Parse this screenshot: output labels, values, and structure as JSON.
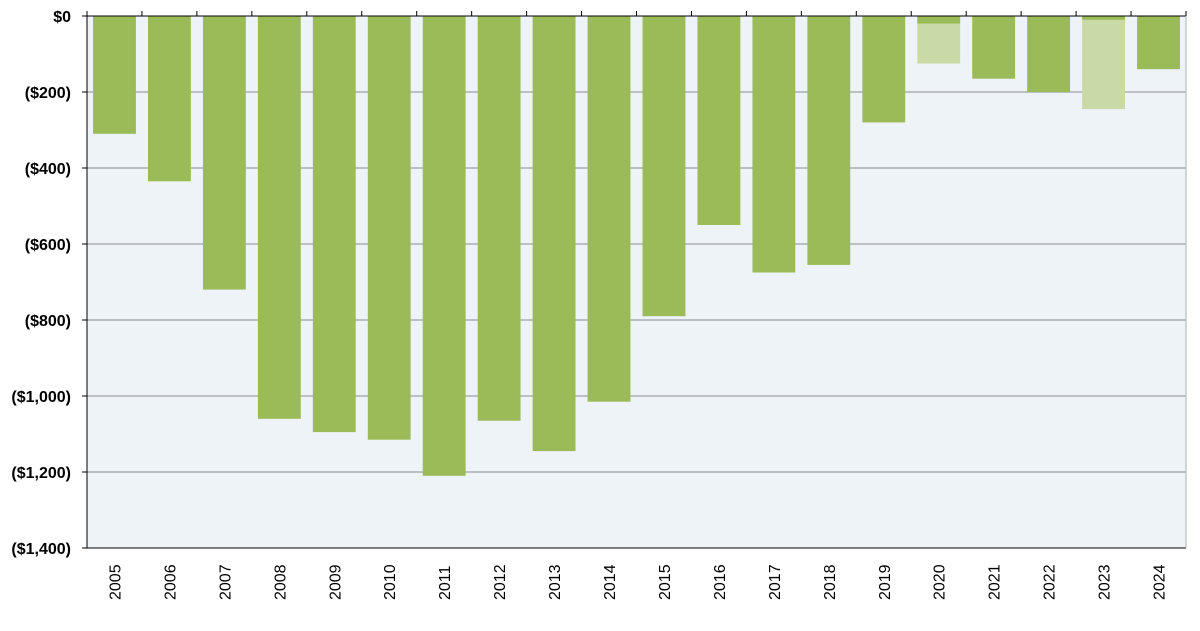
{
  "chart_data": {
    "type": "bar",
    "title": "",
    "xlabel": "",
    "ylabel": "",
    "ylim": [
      -1400,
      0
    ],
    "y_ticks": [
      0,
      -200,
      -400,
      -600,
      -800,
      -1000,
      -1200,
      -1400
    ],
    "y_tick_labels": [
      "$0",
      "($200)",
      "($400)",
      "($600)",
      "($800)",
      "($1,000)",
      "($1,200)",
      "($1,400)"
    ],
    "categories": [
      "2005",
      "2006",
      "2007",
      "2008",
      "2009",
      "2010",
      "2011",
      "2012",
      "2013",
      "2014",
      "2015",
      "2016",
      "2017",
      "2018",
      "2019",
      "2020",
      "2021",
      "2022",
      "2023",
      "2024"
    ],
    "series": [
      {
        "values": [
          -310,
          -435,
          -720,
          -1060,
          -1095,
          -1115,
          -1210,
          -1065,
          -1145,
          -1015,
          -790,
          -550,
          -675,
          -655,
          -280,
          -20,
          -165,
          -200,
          -10,
          -140
        ]
      },
      {
        "values": [
          null,
          null,
          null,
          null,
          null,
          null,
          null,
          null,
          null,
          null,
          null,
          null,
          null,
          null,
          null,
          -125,
          null,
          null,
          -245,
          null
        ]
      }
    ],
    "grid": true,
    "legend": "none",
    "colors": {
      "primary_bar": "#9bbb59",
      "secondary_bar": "#c9daa6",
      "plot_background": "#eef3f8",
      "gridline": "#8c8c8c",
      "axis": "#000000"
    }
  }
}
